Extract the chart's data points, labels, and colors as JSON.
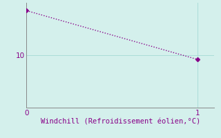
{
  "x": [
    0,
    1
  ],
  "y": [
    18.5,
    9.2
  ],
  "line_color": "#880088",
  "marker": "D",
  "marker_size": 3,
  "bg_color": "#d4f0ec",
  "xlabel": "Windchill (Refroidissement éolien,°C)",
  "xlabel_fontsize": 7.5,
  "xlabel_color": "#880088",
  "yticks": [
    10
  ],
  "xticks": [
    0,
    1
  ],
  "xlim": [
    0,
    1.1
  ],
  "ylim": [
    0,
    20
  ],
  "grid_color": "#aaddd8",
  "tick_color": "#880088",
  "spine_color": "#888888",
  "tick_fontsize": 7.5,
  "line_width": 1.0,
  "figsize": [
    3.2,
    2.0
  ],
  "dpi": 100
}
